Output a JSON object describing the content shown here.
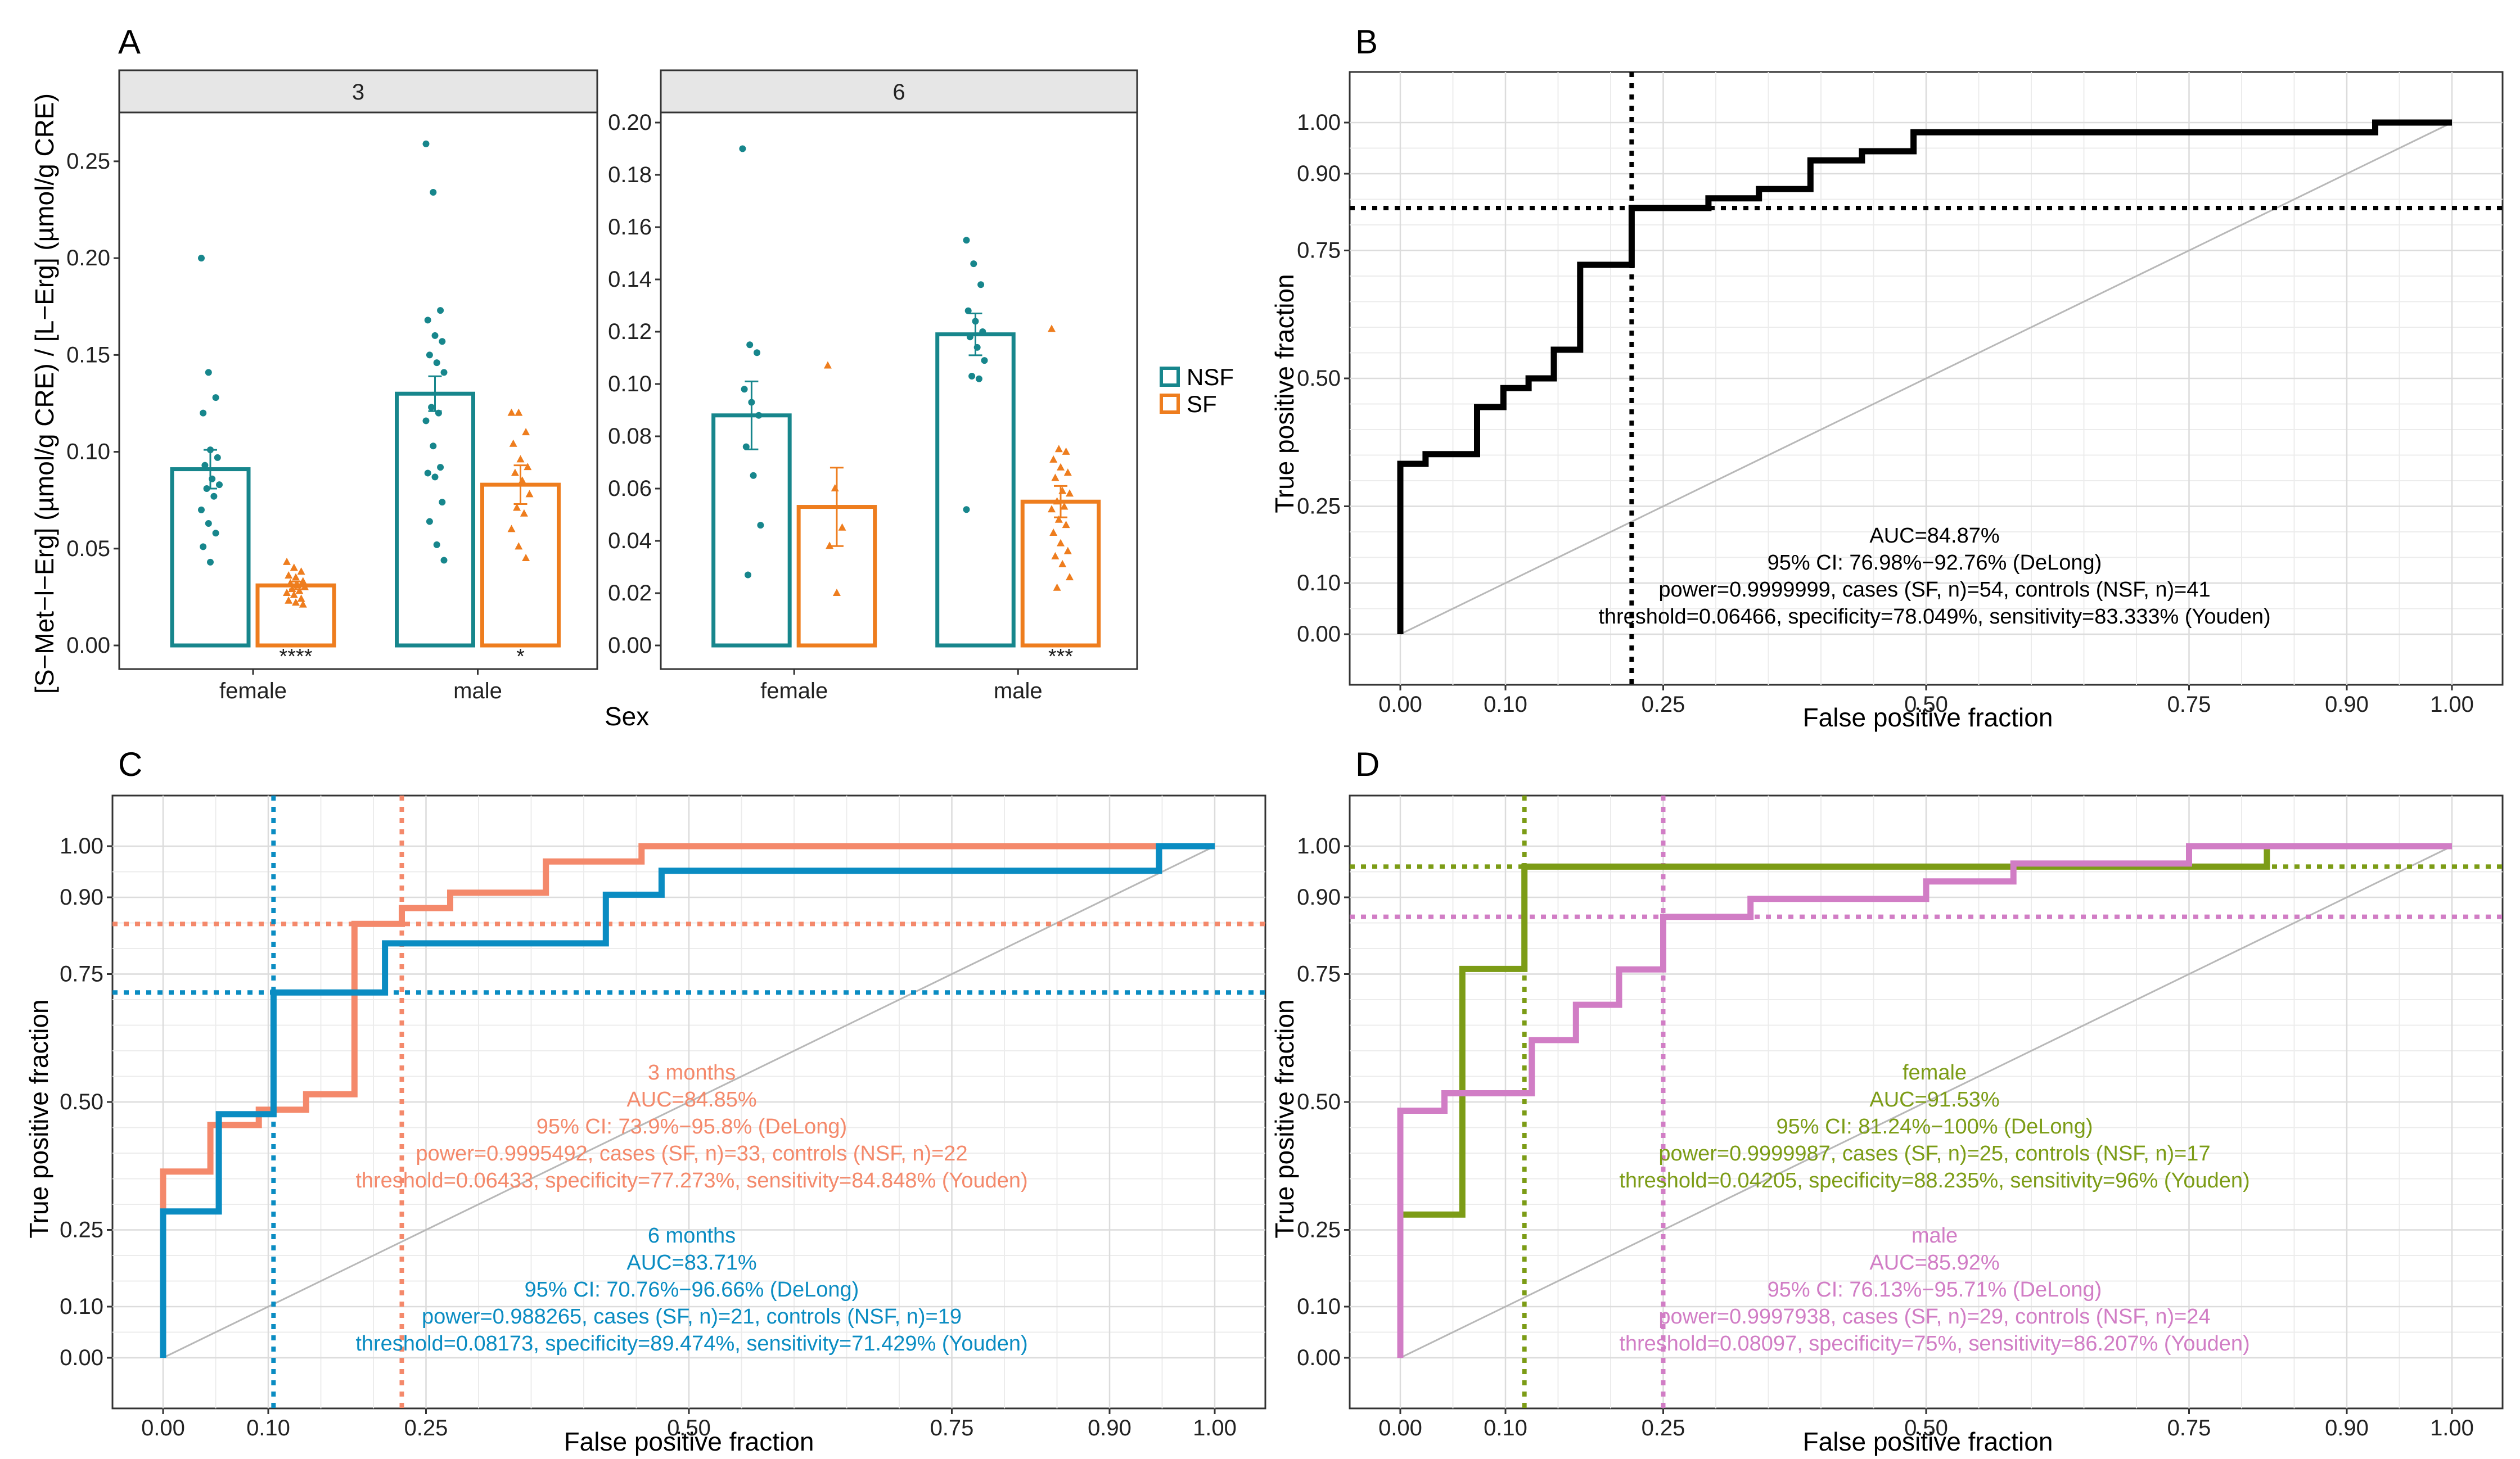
{
  "colors": {
    "nsf": "#17868c",
    "sf": "#ee7d1e",
    "roc_all": "#000000",
    "three_months": "#f4896b",
    "six_months": "#0a8cc2",
    "female": "#7c9c16",
    "male": "#d17dc5"
  },
  "panels": {
    "A": {
      "letter": "A",
      "facets": [
        "3",
        "6"
      ],
      "xlabel": "Sex",
      "ylabel": "[S−Met−l−Erg] (µmol/g CRE) / [L−Erg] (µmol/g CRE)"
    },
    "B": {
      "letter": "B"
    },
    "C": {
      "letter": "C"
    },
    "D": {
      "letter": "D"
    }
  },
  "legend": {
    "items": [
      {
        "label": "NSF",
        "color": "#17868c"
      },
      {
        "label": "SF",
        "color": "#ee7d1e"
      }
    ]
  },
  "roc_axis": {
    "xlabel": "False positive fraction",
    "ylabel": "True positive fraction",
    "xticks": [
      0,
      0.1,
      0.25,
      0.5,
      0.75,
      0.9,
      1.0
    ],
    "xtick_labels": [
      "0.00",
      "0.10",
      "0.25",
      "0.50",
      "0.75",
      "0.90",
      "1.00"
    ],
    "yticks": [
      0,
      0.1,
      0.25,
      0.5,
      0.75,
      0.9,
      1.0
    ],
    "ytick_labels": [
      "0.00",
      "0.10",
      "0.25",
      "0.50",
      "0.75",
      "0.90",
      "1.00"
    ]
  },
  "chart_data": [
    {
      "panel": "A",
      "type": "bar",
      "categories": [
        "female",
        "male"
      ],
      "series": [
        {
          "name": "NSF",
          "facet_3": {
            "means": [
              0.091,
              0.13
            ],
            "se": [
              0.01,
              0.009
            ],
            "points": [
              [
                0.2,
                0.141,
                0.128,
                0.12,
                0.101,
                0.097,
                0.093,
                0.086,
                0.083,
                0.081,
                0.077,
                0.07,
                0.063,
                0.058,
                0.051,
                0.043
              ],
              [
                0.259,
                0.234,
                0.173,
                0.168,
                0.16,
                0.157,
                0.15,
                0.146,
                0.141,
                0.123,
                0.12,
                0.116,
                0.103,
                0.092,
                0.089,
                0.087,
                0.074,
                0.064,
                0.052,
                0.044
              ]
            ]
          },
          "facet_6": {
            "means": [
              0.088,
              0.119
            ],
            "se": [
              0.013,
              0.008
            ],
            "points": [
              [
                0.19,
                0.115,
                0.112,
                0.098,
                0.093,
                0.088,
                0.076,
                0.065,
                0.046,
                0.027
              ],
              [
                0.155,
                0.146,
                0.138,
                0.128,
                0.124,
                0.12,
                0.118,
                0.114,
                0.109,
                0.103,
                0.102,
                0.052
              ]
            ]
          }
        },
        {
          "name": "SF",
          "facet_3": {
            "means": [
              0.031,
              0.083
            ],
            "se": [
              0.002,
              0.01
            ],
            "points": [
              [
                0.043,
                0.04,
                0.038,
                0.036,
                0.035,
                0.033,
                0.032,
                0.031,
                0.03,
                0.029,
                0.028,
                0.027,
                0.026,
                0.024,
                0.023,
                0.022,
                0.021
              ],
              [
                0.12,
                0.12,
                0.11,
                0.104,
                0.096,
                0.092,
                0.089,
                0.085,
                0.078,
                0.071,
                0.068,
                0.06,
                0.051,
                0.045
              ]
            ]
          },
          "facet_6": {
            "means": [
              0.053,
              0.055
            ],
            "se": [
              0.015,
              0.006
            ],
            "points": [
              [
                0.107,
                0.06,
                0.045,
                0.038,
                0.02
              ],
              [
                0.121,
                0.075,
                0.074,
                0.071,
                0.068,
                0.066,
                0.064,
                0.059,
                0.058,
                0.055,
                0.053,
                0.052,
                0.048,
                0.046,
                0.043,
                0.039,
                0.036,
                0.034,
                0.031,
                0.026,
                0.022
              ]
            ]
          }
        }
      ],
      "facet_ylims": {
        "3": [
          0.0,
          0.27
        ],
        "6": [
          0.0,
          0.2
        ]
      },
      "facet_yticks": {
        "3": [
          "0.00",
          "0.05",
          "0.10",
          "0.15",
          "0.20",
          "0.25"
        ],
        "6": [
          "0.00",
          "0.02",
          "0.04",
          "0.06",
          "0.08",
          "0.10",
          "0.12",
          "0.14",
          "0.16",
          "0.18",
          "0.20"
        ]
      },
      "significance": {
        "3": [
          "****",
          "*"
        ],
        "6": [
          "",
          "***"
        ]
      }
    },
    {
      "panel": "B",
      "type": "line",
      "series": [
        {
          "name": "all",
          "color": "#000000",
          "x": [
            0,
            0,
            0.024,
            0.024,
            0.073,
            0.073,
            0.098,
            0.098,
            0.122,
            0.122,
            0.146,
            0.146,
            0.171,
            0.171,
            0.22,
            0.22,
            0.293,
            0.293,
            0.341,
            0.341,
            0.39,
            0.39,
            0.439,
            0.439,
            0.488,
            0.488,
            0.927,
            0.927,
            1.0
          ],
          "y": [
            0,
            0.333,
            0.333,
            0.352,
            0.352,
            0.444,
            0.444,
            0.481,
            0.481,
            0.5,
            0.5,
            0.556,
            0.556,
            0.722,
            0.722,
            0.833,
            0.833,
            0.852,
            0.852,
            0.87,
            0.87,
            0.926,
            0.926,
            0.944,
            0.944,
            0.981,
            0.981,
            1.0,
            1.0
          ],
          "threshold": [
            0.22,
            0.833
          ]
        }
      ],
      "annotation": [
        "AUC=84.87%",
        "95% CI: 76.98%−92.76% (DeLong)",
        "power=0.9999999, cases (SF, n)=54, controls (NSF, n)=41",
        "threshold=0.06466, specificity=78.049%, sensitivity=83.333% (Youden)"
      ]
    },
    {
      "panel": "C",
      "type": "line",
      "series": [
        {
          "name": "3 months",
          "color": "#f4896b",
          "x": [
            0,
            0,
            0.045,
            0.045,
            0.091,
            0.091,
            0.136,
            0.136,
            0.182,
            0.182,
            0.227,
            0.227,
            0.273,
            0.273,
            0.364,
            0.364,
            0.455,
            0.455,
            1.0
          ],
          "y": [
            0,
            0.364,
            0.364,
            0.455,
            0.455,
            0.485,
            0.485,
            0.515,
            0.515,
            0.848,
            0.848,
            0.879,
            0.879,
            0.909,
            0.909,
            0.97,
            0.97,
            1.0,
            1.0
          ],
          "threshold": [
            0.227,
            0.848
          ]
        },
        {
          "name": "6 months",
          "color": "#0a8cc2",
          "x": [
            0,
            0,
            0.053,
            0.053,
            0.105,
            0.105,
            0.211,
            0.211,
            0.421,
            0.421,
            0.474,
            0.474,
            0.947,
            0.947,
            1.0
          ],
          "y": [
            0,
            0.286,
            0.286,
            0.476,
            0.476,
            0.714,
            0.714,
            0.81,
            0.81,
            0.905,
            0.905,
            0.952,
            0.952,
            1.0,
            1.0
          ],
          "threshold": [
            0.105,
            0.714
          ]
        }
      ],
      "annotations": [
        [
          "3 months",
          "AUC=84.85%",
          "95% CI: 73.9%−95.8% (DeLong)",
          "power=0.9995492, cases (SF, n)=33, controls (NSF, n)=22",
          "threshold=0.06433, specificity=77.273%, sensitivity=84.848% (Youden)"
        ],
        [
          "6 months",
          "AUC=83.71%",
          "95% CI: 70.76%−96.66% (DeLong)",
          "power=0.988265, cases (SF, n)=21, controls (NSF, n)=19",
          "threshold=0.08173, specificity=89.474%, sensitivity=71.429% (Youden)"
        ]
      ]
    },
    {
      "panel": "D",
      "type": "line",
      "series": [
        {
          "name": "female",
          "color": "#7c9c16",
          "x": [
            0,
            0,
            0.059,
            0.059,
            0.118,
            0.118,
            0.824,
            0.824,
            1.0
          ],
          "y": [
            0,
            0.28,
            0.28,
            0.76,
            0.76,
            0.96,
            0.96,
            1.0,
            1.0
          ],
          "threshold": [
            0.118,
            0.96
          ]
        },
        {
          "name": "male",
          "color": "#d17dc5",
          "x": [
            0,
            0,
            0.042,
            0.042,
            0.125,
            0.125,
            0.167,
            0.167,
            0.208,
            0.208,
            0.25,
            0.25,
            0.333,
            0.333,
            0.5,
            0.5,
            0.583,
            0.583,
            0.75,
            0.75,
            1.0
          ],
          "y": [
            0,
            0.483,
            0.483,
            0.517,
            0.517,
            0.621,
            0.621,
            0.69,
            0.69,
            0.759,
            0.759,
            0.862,
            0.862,
            0.897,
            0.897,
            0.931,
            0.931,
            0.966,
            0.966,
            1.0,
            1.0
          ],
          "threshold": [
            0.25,
            0.862
          ]
        }
      ],
      "annotations": [
        [
          "female",
          "AUC=91.53%",
          "95% CI: 81.24%−100% (DeLong)",
          "power=0.9999987, cases (SF, n)=25, controls (NSF, n)=17",
          "threshold=0.04205, specificity=88.235%, sensitivity=96% (Youden)"
        ],
        [
          "male",
          "AUC=85.92%",
          "95% CI: 76.13%−95.71% (DeLong)",
          "power=0.9997938, cases (SF, n)=29, controls (NSF, n)=24",
          "threshold=0.08097, specificity=75%, sensitivity=86.207% (Youden)"
        ]
      ]
    }
  ]
}
